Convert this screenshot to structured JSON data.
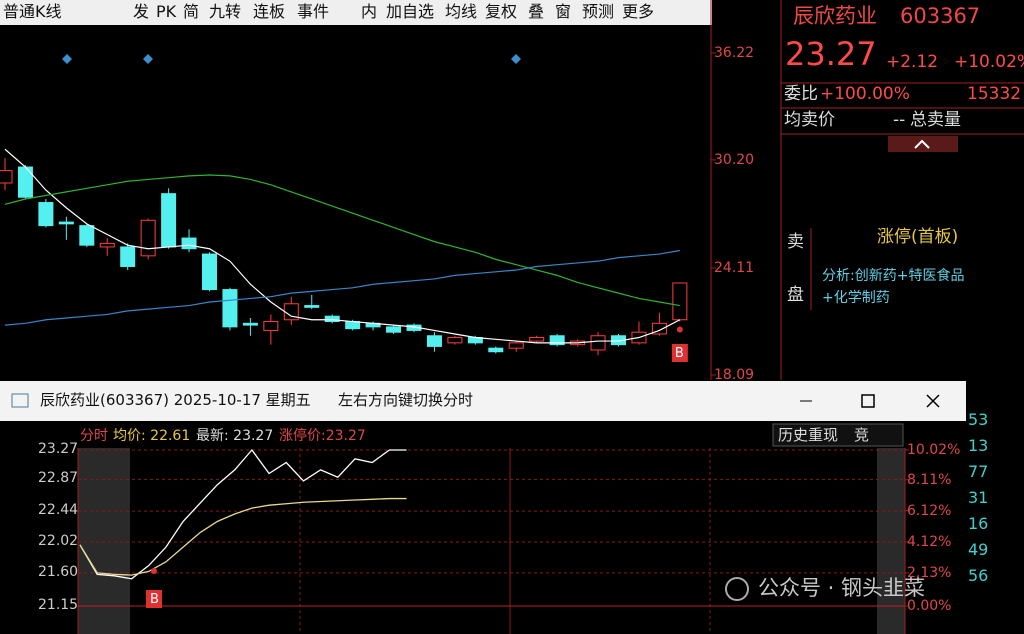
{
  "toolbar": {
    "items": [
      "普通K线",
      "发",
      "PK",
      "简",
      "九转",
      "连板",
      "事件",
      "内",
      "加自选",
      "均线",
      "复权",
      "叠",
      "窗",
      "预测",
      "更多"
    ]
  },
  "kline": {
    "yticks": [
      36.22,
      {
        "value": 30.2,
        "label": "30.20"
      },
      24.11,
      18.09
    ],
    "ylim": [
      18.09,
      36.22
    ],
    "marker": "B",
    "candles": [
      {
        "open": 28.9,
        "close": 29.6,
        "high": 30.3,
        "low": 28.5
      },
      {
        "open": 29.8,
        "close": 28.1,
        "high": 29.9,
        "low": 28.0
      },
      {
        "open": 27.8,
        "close": 26.5,
        "high": 28.0,
        "low": 26.4
      },
      {
        "open": 26.7,
        "close": 26.6,
        "high": 27.0,
        "low": 25.7
      },
      {
        "open": 26.5,
        "close": 25.4,
        "high": 26.6,
        "low": 25.3
      },
      {
        "open": 25.3,
        "close": 25.5,
        "high": 25.8,
        "low": 24.8
      },
      {
        "open": 25.3,
        "close": 24.2,
        "high": 25.5,
        "low": 24.0
      },
      {
        "open": 24.8,
        "close": 26.8,
        "high": 26.9,
        "low": 24.6
      },
      {
        "open": 28.3,
        "close": 25.3,
        "high": 28.6,
        "low": 25.2
      },
      {
        "open": 25.8,
        "close": 25.2,
        "high": 26.3,
        "low": 25.0
      },
      {
        "open": 24.9,
        "close": 22.9,
        "high": 25.0,
        "low": 22.8
      },
      {
        "open": 22.9,
        "close": 20.8,
        "high": 23.0,
        "low": 20.6
      },
      {
        "open": 21.0,
        "close": 20.9,
        "high": 21.3,
        "low": 20.3
      },
      {
        "open": 20.6,
        "close": 21.1,
        "high": 21.5,
        "low": 19.8
      },
      {
        "open": 21.2,
        "close": 22.1,
        "high": 22.5,
        "low": 20.9
      },
      {
        "open": 22.0,
        "close": 21.9,
        "high": 22.6,
        "low": 21.8
      },
      {
        "open": 21.4,
        "close": 21.1,
        "high": 21.5,
        "low": 21.0
      },
      {
        "open": 21.1,
        "close": 20.7,
        "high": 21.2,
        "low": 20.6
      },
      {
        "open": 21.0,
        "close": 20.8,
        "high": 21.1,
        "low": 20.6
      },
      {
        "open": 20.8,
        "close": 20.5,
        "high": 20.9,
        "low": 20.4
      },
      {
        "open": 20.9,
        "close": 20.6,
        "high": 21.0,
        "low": 20.5
      },
      {
        "open": 20.3,
        "close": 19.7,
        "high": 20.5,
        "low": 19.4
      },
      {
        "open": 19.9,
        "close": 20.2,
        "high": 20.3,
        "low": 19.8
      },
      {
        "open": 20.2,
        "close": 19.9,
        "high": 20.3,
        "low": 19.8
      },
      {
        "open": 19.6,
        "close": 19.4,
        "high": 19.7,
        "low": 19.3
      },
      {
        "open": 19.6,
        "close": 19.9,
        "high": 20.0,
        "low": 19.4
      },
      {
        "open": 20.0,
        "close": 20.2,
        "high": 20.3,
        "low": 19.9
      },
      {
        "open": 20.3,
        "close": 19.8,
        "high": 20.4,
        "low": 19.7
      },
      {
        "open": 19.8,
        "close": 20.0,
        "high": 20.1,
        "low": 19.7
      },
      {
        "open": 19.5,
        "close": 20.3,
        "high": 20.5,
        "low": 19.2
      },
      {
        "open": 20.3,
        "close": 19.8,
        "high": 20.4,
        "low": 19.7
      },
      {
        "open": 19.9,
        "close": 20.5,
        "high": 21.1,
        "low": 19.8
      },
      {
        "open": 20.4,
        "close": 21.0,
        "high": 21.6,
        "low": 20.3
      },
      {
        "open": 21.2,
        "close": 23.27,
        "high": 23.27,
        "low": 21.1
      }
    ],
    "ma": [
      {
        "color": "#ffffff",
        "values": [
          30.8,
          29.8,
          28.5,
          27.5,
          26.6,
          26.0,
          25.4,
          25.2,
          25.3,
          25.4,
          25.2,
          24.5,
          23.2,
          22.2,
          21.4,
          21.2,
          21.2,
          21.1,
          21.0,
          20.9,
          20.8,
          20.6,
          20.4,
          20.2,
          20.1,
          20.0,
          19.9,
          19.9,
          19.9,
          20.0,
          20.0,
          20.2,
          20.6,
          21.2
        ]
      },
      {
        "color": "#2fb52f",
        "values": [
          27.7,
          28.0,
          28.2,
          28.4,
          28.6,
          28.8,
          29.0,
          29.1,
          29.2,
          29.3,
          29.35,
          29.3,
          29.1,
          28.8,
          28.4,
          28.0,
          27.6,
          27.2,
          26.8,
          26.4,
          26.0,
          25.6,
          25.3,
          25.0,
          24.6,
          24.3,
          24.0,
          23.7,
          23.3,
          23.0,
          22.7,
          22.4,
          22.2,
          22.0
        ]
      },
      {
        "color": "#3a86c8",
        "values": [
          20.9,
          21.0,
          21.2,
          21.3,
          21.4,
          21.5,
          21.7,
          21.8,
          21.9,
          22.0,
          22.2,
          22.3,
          22.4,
          22.5,
          22.7,
          22.8,
          22.9,
          23.0,
          23.2,
          23.3,
          23.4,
          23.5,
          23.7,
          23.8,
          23.9,
          24.0,
          24.2,
          24.3,
          24.4,
          24.5,
          24.7,
          24.8,
          24.9,
          25.1
        ]
      }
    ]
  },
  "quote": {
    "name": "辰欣药业",
    "code": "603367",
    "price": "23.27",
    "change": "+2.12",
    "pct": "+10.02%",
    "ratio_label": "委比",
    "ratio": "+100.00%",
    "ratio_volume": "15332",
    "avg_sell_label": "均卖价",
    "avg_sell": "--",
    "total_sell_label": "总卖量",
    "sell_side": [
      "卖",
      "盘"
    ],
    "status": "涨停(首板)",
    "analysis": "分析:创新药+特医食品+化学制药",
    "edge_fragments": [
      "53",
      "13",
      "77",
      "31",
      "16",
      "49",
      "56"
    ]
  },
  "window": {
    "title": "辰欣药业(603367) 2025-10-17 星期五",
    "hint": "左右方向键切换分时"
  },
  "intraday": {
    "mode": "分时",
    "avg": "均价: 22.61",
    "latest": "最新: 23.27",
    "limit": "涨停价:23.27",
    "buttons": [
      "历史重现",
      "竞"
    ],
    "marker": "B",
    "ylim": [
      21.15,
      23.27
    ],
    "yticks": [
      23.27,
      22.87,
      22.44,
      22.02,
      {
        "value": 21.6,
        "label": "21.60"
      },
      21.15
    ],
    "y2ticks": [
      {
        "value": 10.02,
        "label": "10.02%"
      },
      {
        "value": 8.11,
        "label": "8.11%"
      },
      {
        "value": 6.12,
        "label": "6.12%"
      },
      {
        "value": 4.12,
        "label": "4.12%"
      },
      {
        "value": 2.13,
        "label": "2.13%"
      },
      {
        "value": 0,
        "label": "0.00%"
      }
    ],
    "y2lim": [
      0,
      10.02
    ],
    "xlim": [
      0,
      240
    ],
    "minutes": [
      0,
      5,
      10,
      15,
      20,
      25,
      30,
      35,
      40,
      45,
      50,
      55,
      60,
      65,
      70,
      75,
      80,
      85,
      90,
      95
    ],
    "price": [
      21.98,
      21.58,
      21.56,
      21.52,
      21.7,
      21.95,
      22.3,
      22.55,
      22.8,
      23.0,
      23.27,
      22.95,
      23.1,
      22.85,
      23.0,
      22.9,
      23.15,
      23.1,
      23.27,
      23.27
    ],
    "avg_price": [
      21.98,
      21.6,
      21.58,
      21.57,
      21.62,
      21.75,
      21.95,
      22.15,
      22.3,
      22.4,
      22.48,
      22.52,
      22.54,
      22.56,
      22.57,
      22.58,
      22.59,
      22.6,
      22.61,
      22.61
    ]
  },
  "watermark": "公众号 · 钢头韭菜"
}
